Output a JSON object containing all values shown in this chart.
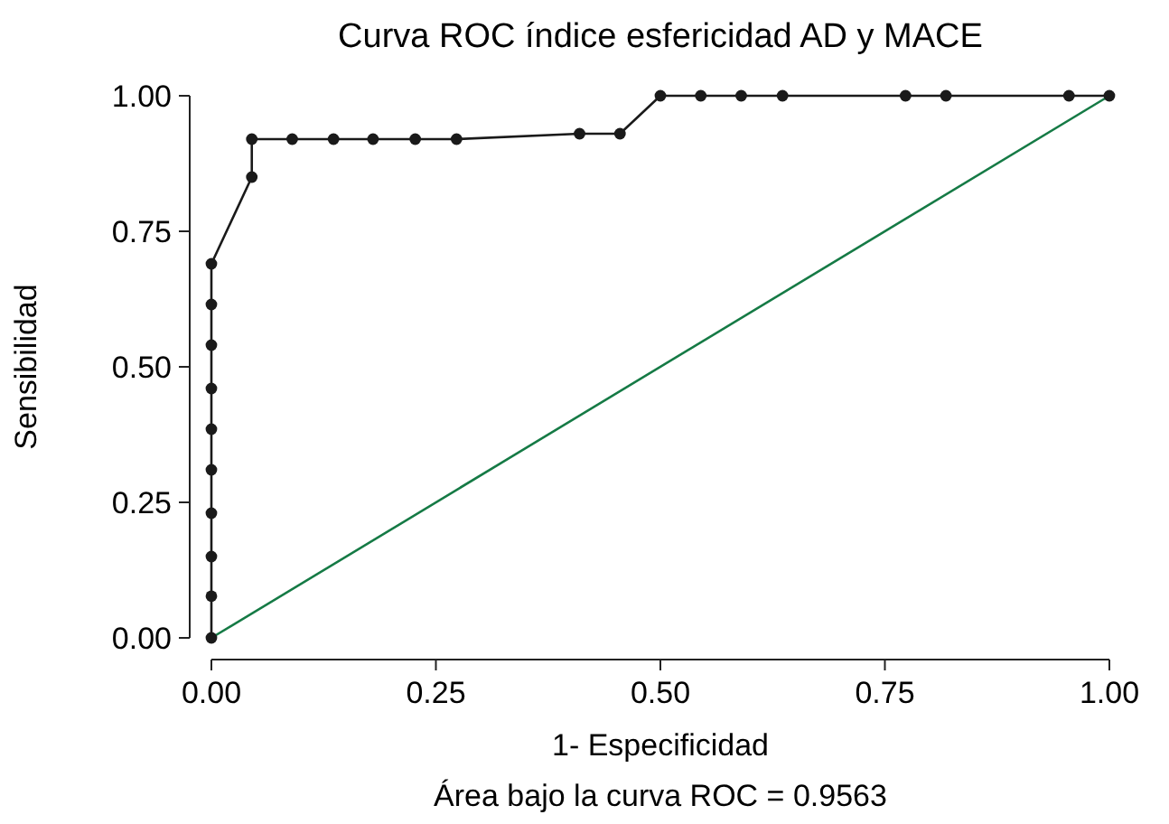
{
  "chart_data": {
    "type": "line",
    "title": "Curva ROC índice esfericidad AD y MACE",
    "xlabel": "1- Especificidad",
    "ylabel": "Sensibilidad",
    "annotations": [
      "Área bajo la curva ROC = 0.9563"
    ],
    "xlim": [
      0,
      1
    ],
    "ylim": [
      0,
      1
    ],
    "xticks": [
      {
        "value": 0,
        "label": "0.00"
      },
      {
        "value": 0.25,
        "label": "0.25"
      },
      {
        "value": 0.5,
        "label": "0.50"
      },
      {
        "value": 0.75,
        "label": "0.75"
      },
      {
        "value": 1,
        "label": "1.00"
      }
    ],
    "yticks": [
      {
        "value": 0,
        "label": "0.00"
      },
      {
        "value": 0.25,
        "label": "0.25"
      },
      {
        "value": 0.5,
        "label": "0.50"
      },
      {
        "value": 0.75,
        "label": "0.75"
      },
      {
        "value": 1,
        "label": "1.00"
      }
    ],
    "grid": false,
    "series": [
      {
        "color": "#1a1a1a",
        "marker": "circle",
        "x": [
          0,
          0,
          0,
          0,
          0,
          0,
          0,
          0,
          0,
          0,
          0.045,
          0.045,
          0.09,
          0.136,
          0.18,
          0.227,
          0.273,
          0.41,
          0.455,
          0.5,
          0.545,
          0.59,
          0.636,
          0.773,
          0.818,
          0.955,
          1
        ],
        "values": [
          0,
          0.077,
          0.15,
          0.23,
          0.31,
          0.385,
          0.46,
          0.54,
          0.615,
          0.69,
          0.85,
          0.92,
          0.92,
          0.92,
          0.92,
          0.92,
          0.92,
          0.93,
          0.93,
          1,
          1,
          1,
          1,
          1,
          1,
          1,
          1
        ]
      },
      {
        "color": "#157a45",
        "marker": "none",
        "x": [
          0,
          1
        ],
        "values": [
          0,
          1
        ]
      }
    ]
  }
}
